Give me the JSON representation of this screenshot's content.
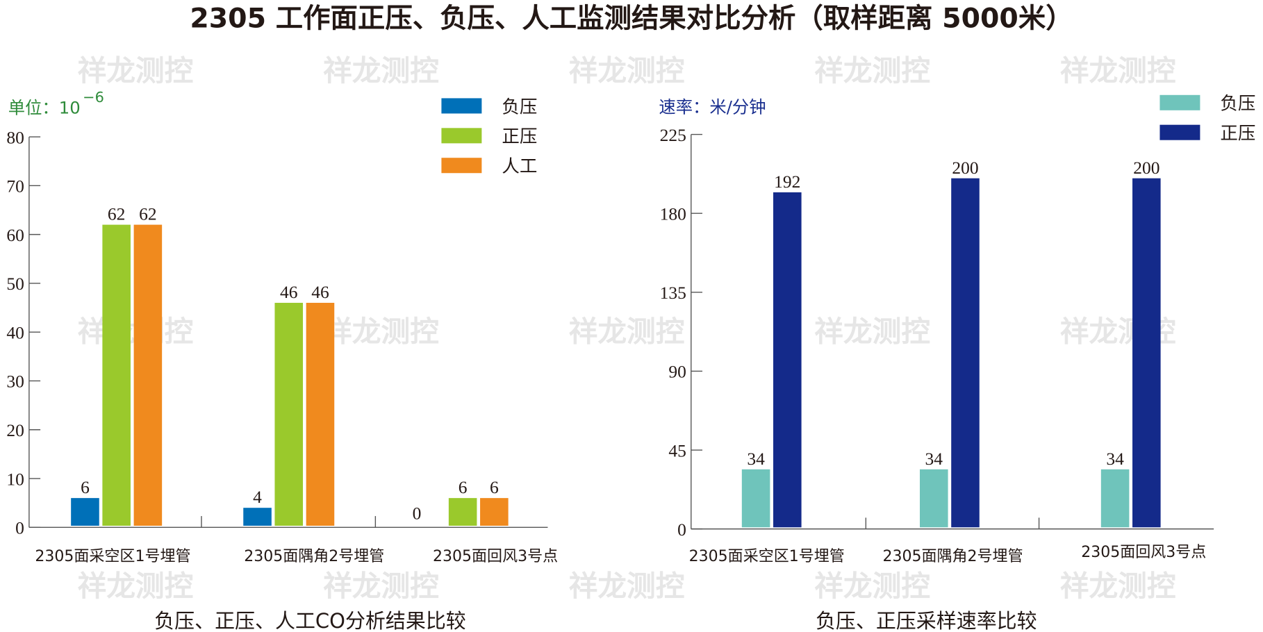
{
  "title": "2305 工作面正压、负压、人工监测结果对比分析（取样距离 5000米）",
  "watermark": "祥龙测控",
  "colors": {
    "negative": "#0070b8",
    "positive": "#9ac92c",
    "manual": "#f08a1e",
    "rate_negative": "#6fc4bb",
    "rate_positive": "#142a8a",
    "unit_left": "#2e8b3a",
    "unit_right": "#1a2f8f"
  },
  "chart_data": [
    {
      "type": "bar",
      "title": "负压、正压、人工CO分析结果比较",
      "unit_prefix": "单位：10",
      "unit_exponent": "−6",
      "categories": [
        "2305面采空区1号埋管",
        "2305面隅角2号埋管",
        "2305面回风3号点"
      ],
      "series": [
        {
          "name": "负压",
          "values": [
            6,
            4,
            0
          ]
        },
        {
          "name": "正压",
          "values": [
            62,
            46,
            6
          ]
        },
        {
          "name": "人工",
          "values": [
            62,
            46,
            6
          ]
        }
      ],
      "ylim": [
        0,
        80
      ],
      "yticks": [
        "0",
        "10",
        "20",
        "30",
        "40",
        "50",
        "60",
        "70",
        "80"
      ],
      "legend": "top-right",
      "grid": false
    },
    {
      "type": "bar",
      "title": "负压、正压采样速率比较",
      "unit_label": "速率：米/分钟",
      "categories": [
        "2305面采空区1号埋管",
        "2305面隅角2号埋管",
        "2305面回风3号点"
      ],
      "series": [
        {
          "name": "负压",
          "values": [
            34,
            34,
            34
          ]
        },
        {
          "name": "正压",
          "values": [
            192,
            200,
            200
          ]
        }
      ],
      "ylim": [
        0,
        225
      ],
      "yticks": [
        "0",
        "45",
        "90",
        "135",
        "180",
        "225"
      ],
      "legend": "top-right",
      "grid": false
    }
  ]
}
